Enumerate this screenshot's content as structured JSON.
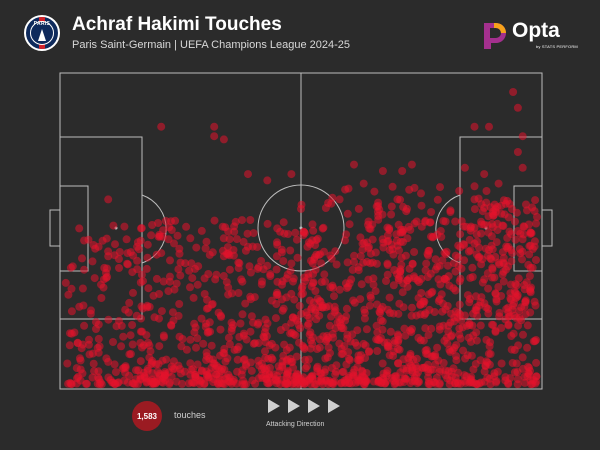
{
  "header": {
    "title": "Achraf Hakimi Touches",
    "subtitle": "Paris Saint-Germain | UEFA Champions League 2024-25",
    "crest_text": "PARIS",
    "brand": "Opta",
    "brand_tagline": "by STATS PERFORM"
  },
  "colors": {
    "background": "#2b2b2b",
    "pitch_lines": "#bdbdbd",
    "touch_dot": "#e3122c",
    "count_badge": "#9b1b22",
    "opta_orange": "#f7a21b",
    "opta_purple": "#a4308e"
  },
  "legend": {
    "count": "1,583",
    "count_label": "touches",
    "direction_label": "Attacking Direction",
    "direction_icon": "right-arrow-icon"
  },
  "chart_data": {
    "type": "scatter",
    "title": "Achraf Hakimi Touches",
    "subtitle": "Paris Saint-Germain | UEFA Champions League 2024-25",
    "total_touches": 1583,
    "x_range": [
      0,
      100
    ],
    "y_range": [
      0,
      100
    ],
    "grid": false,
    "legend": "bottom-left",
    "attacking_direction": "left-to-right",
    "points": [
      [
        61,
        71
      ],
      [
        63,
        65
      ],
      [
        81,
        56
      ],
      [
        80,
        53
      ],
      [
        84,
        70
      ],
      [
        91,
        65
      ],
      [
        95,
        75
      ],
      [
        96,
        70
      ],
      [
        91,
        40
      ],
      [
        93,
        45
      ],
      [
        95,
        50
      ],
      [
        96,
        80
      ],
      [
        94,
        94
      ],
      [
        95,
        89
      ],
      [
        89,
        83
      ],
      [
        86,
        83
      ],
      [
        88,
        68
      ],
      [
        86,
        60
      ],
      [
        82,
        53
      ],
      [
        58,
        60
      ],
      [
        62,
        57
      ],
      [
        64,
        53
      ],
      [
        66,
        59
      ],
      [
        70,
        60
      ],
      [
        72,
        57
      ],
      [
        75,
        58
      ],
      [
        74,
        53
      ],
      [
        77,
        56
      ],
      [
        79,
        50
      ],
      [
        83,
        49
      ],
      [
        86,
        46
      ],
      [
        89,
        44
      ],
      [
        92,
        40
      ],
      [
        88,
        52
      ],
      [
        90,
        55
      ],
      [
        69,
        64
      ],
      [
        71,
        69
      ],
      [
        67,
        69
      ],
      [
        73,
        71
      ],
      [
        32,
        83
      ],
      [
        43,
        66
      ],
      [
        10,
        60
      ],
      [
        21,
        83
      ],
      [
        32,
        80
      ],
      [
        34,
        79
      ],
      [
        39,
        68
      ],
      [
        48,
        68
      ],
      [
        50,
        57
      ],
      [
        5,
        47
      ],
      [
        8,
        45
      ],
      [
        10,
        42
      ],
      [
        16,
        45
      ],
      [
        14,
        43
      ],
      [
        15,
        37
      ],
      [
        18,
        38
      ],
      [
        21,
        43
      ],
      [
        25,
        40
      ],
      [
        28,
        38
      ],
      [
        30,
        35
      ],
      [
        34,
        42
      ],
      [
        36,
        44
      ],
      [
        37,
        40
      ],
      [
        39,
        45
      ],
      [
        41,
        38
      ],
      [
        43,
        39
      ],
      [
        45,
        42
      ],
      [
        47,
        35
      ],
      [
        47,
        29
      ],
      [
        4,
        26
      ],
      [
        5,
        20
      ],
      [
        6,
        14
      ],
      [
        7,
        8
      ],
      [
        56,
        20
      ],
      [
        57,
        26
      ],
      [
        55,
        34
      ],
      [
        54,
        5
      ],
      [
        96,
        10
      ],
      [
        97,
        4
      ]
    ],
    "distribution_note": "density highest in lower half, denser in attacking half"
  }
}
